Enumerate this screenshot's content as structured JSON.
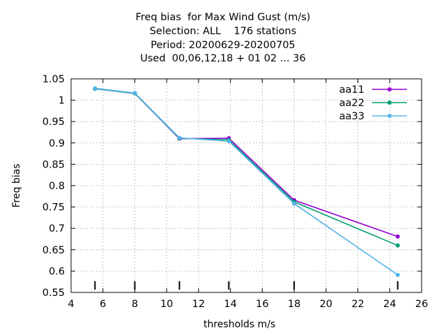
{
  "chart_data": {
    "type": "line",
    "title_lines": [
      "Freq bias  for Max Wind Gust (m/s)",
      "Selection: ALL    176 stations",
      "Period: 20200629-20200705",
      "Used  00,06,12,18 + 01 02 ... 36"
    ],
    "xlabel": "thresholds m/s",
    "ylabel": "Freq bias",
    "xlim": [
      4,
      26
    ],
    "ylim": [
      0.55,
      1.05
    ],
    "xticks": [
      "4",
      "6",
      "8",
      "10",
      "12",
      "14",
      "16",
      "18",
      "20",
      "22",
      "24",
      "26"
    ],
    "yticks": [
      "0.55",
      "0.6",
      "0.65",
      "0.7",
      "0.75",
      "0.8",
      "0.85",
      "0.9",
      "0.95",
      "1",
      "1.05"
    ],
    "grid": true,
    "legend_position": "top-right",
    "threshold_markers": [
      5.5,
      8,
      10.8,
      13.9,
      18,
      24.5
    ],
    "series": [
      {
        "name": "aa11",
        "color": "#9400d3",
        "x": [
          5.5,
          8,
          10.8,
          13.9,
          18,
          24.5
        ],
        "y": [
          1.027,
          1.016,
          0.91,
          0.911,
          0.766,
          0.681
        ]
      },
      {
        "name": "aa22",
        "color": "#009e73",
        "x": [
          5.5,
          8,
          10.8,
          13.9,
          18,
          24.5
        ],
        "y": [
          1.027,
          1.016,
          0.911,
          0.907,
          0.762,
          0.66
        ]
      },
      {
        "name": "aa33",
        "color": "#56b4e9",
        "x": [
          5.5,
          8,
          10.8,
          13.9,
          18,
          24.5
        ],
        "y": [
          1.028,
          1.017,
          0.912,
          0.904,
          0.758,
          0.591
        ]
      }
    ]
  }
}
